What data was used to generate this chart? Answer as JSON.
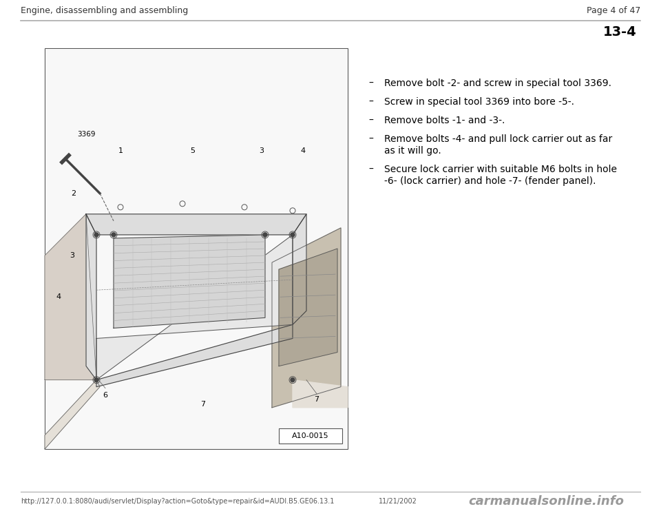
{
  "background_color": "#ffffff",
  "header_left": "Engine, disassembling and assembling",
  "header_right": "Page 4 of 47",
  "page_number": "13-4",
  "footer_url": "http://127.0.0.1:8080/audi/servlet/Display?action=Goto&type=repair&id=AUDI.B5.GE06.13.1",
  "footer_date": "11/21/2002",
  "footer_watermark": "carmanualsonline.info",
  "image_label": "A10-0015",
  "bullet_items": [
    [
      "Remove bolt -2- and screw in special tool 3369."
    ],
    [
      "Screw in special tool 3369 into bore -5-."
    ],
    [
      "Remove bolts -1- and -3-."
    ],
    [
      "Remove bolts -4- and pull lock carrier out as far",
      "as it will go."
    ],
    [
      "Secure lock carrier with suitable M6 bolts in hole",
      "-6- (lock carrier) and hole -7- (fender panel)."
    ]
  ],
  "header_font_size": 9,
  "page_num_font_size": 14,
  "bullet_font_size": 10,
  "footer_font_size": 7,
  "watermark_font_size": 13
}
